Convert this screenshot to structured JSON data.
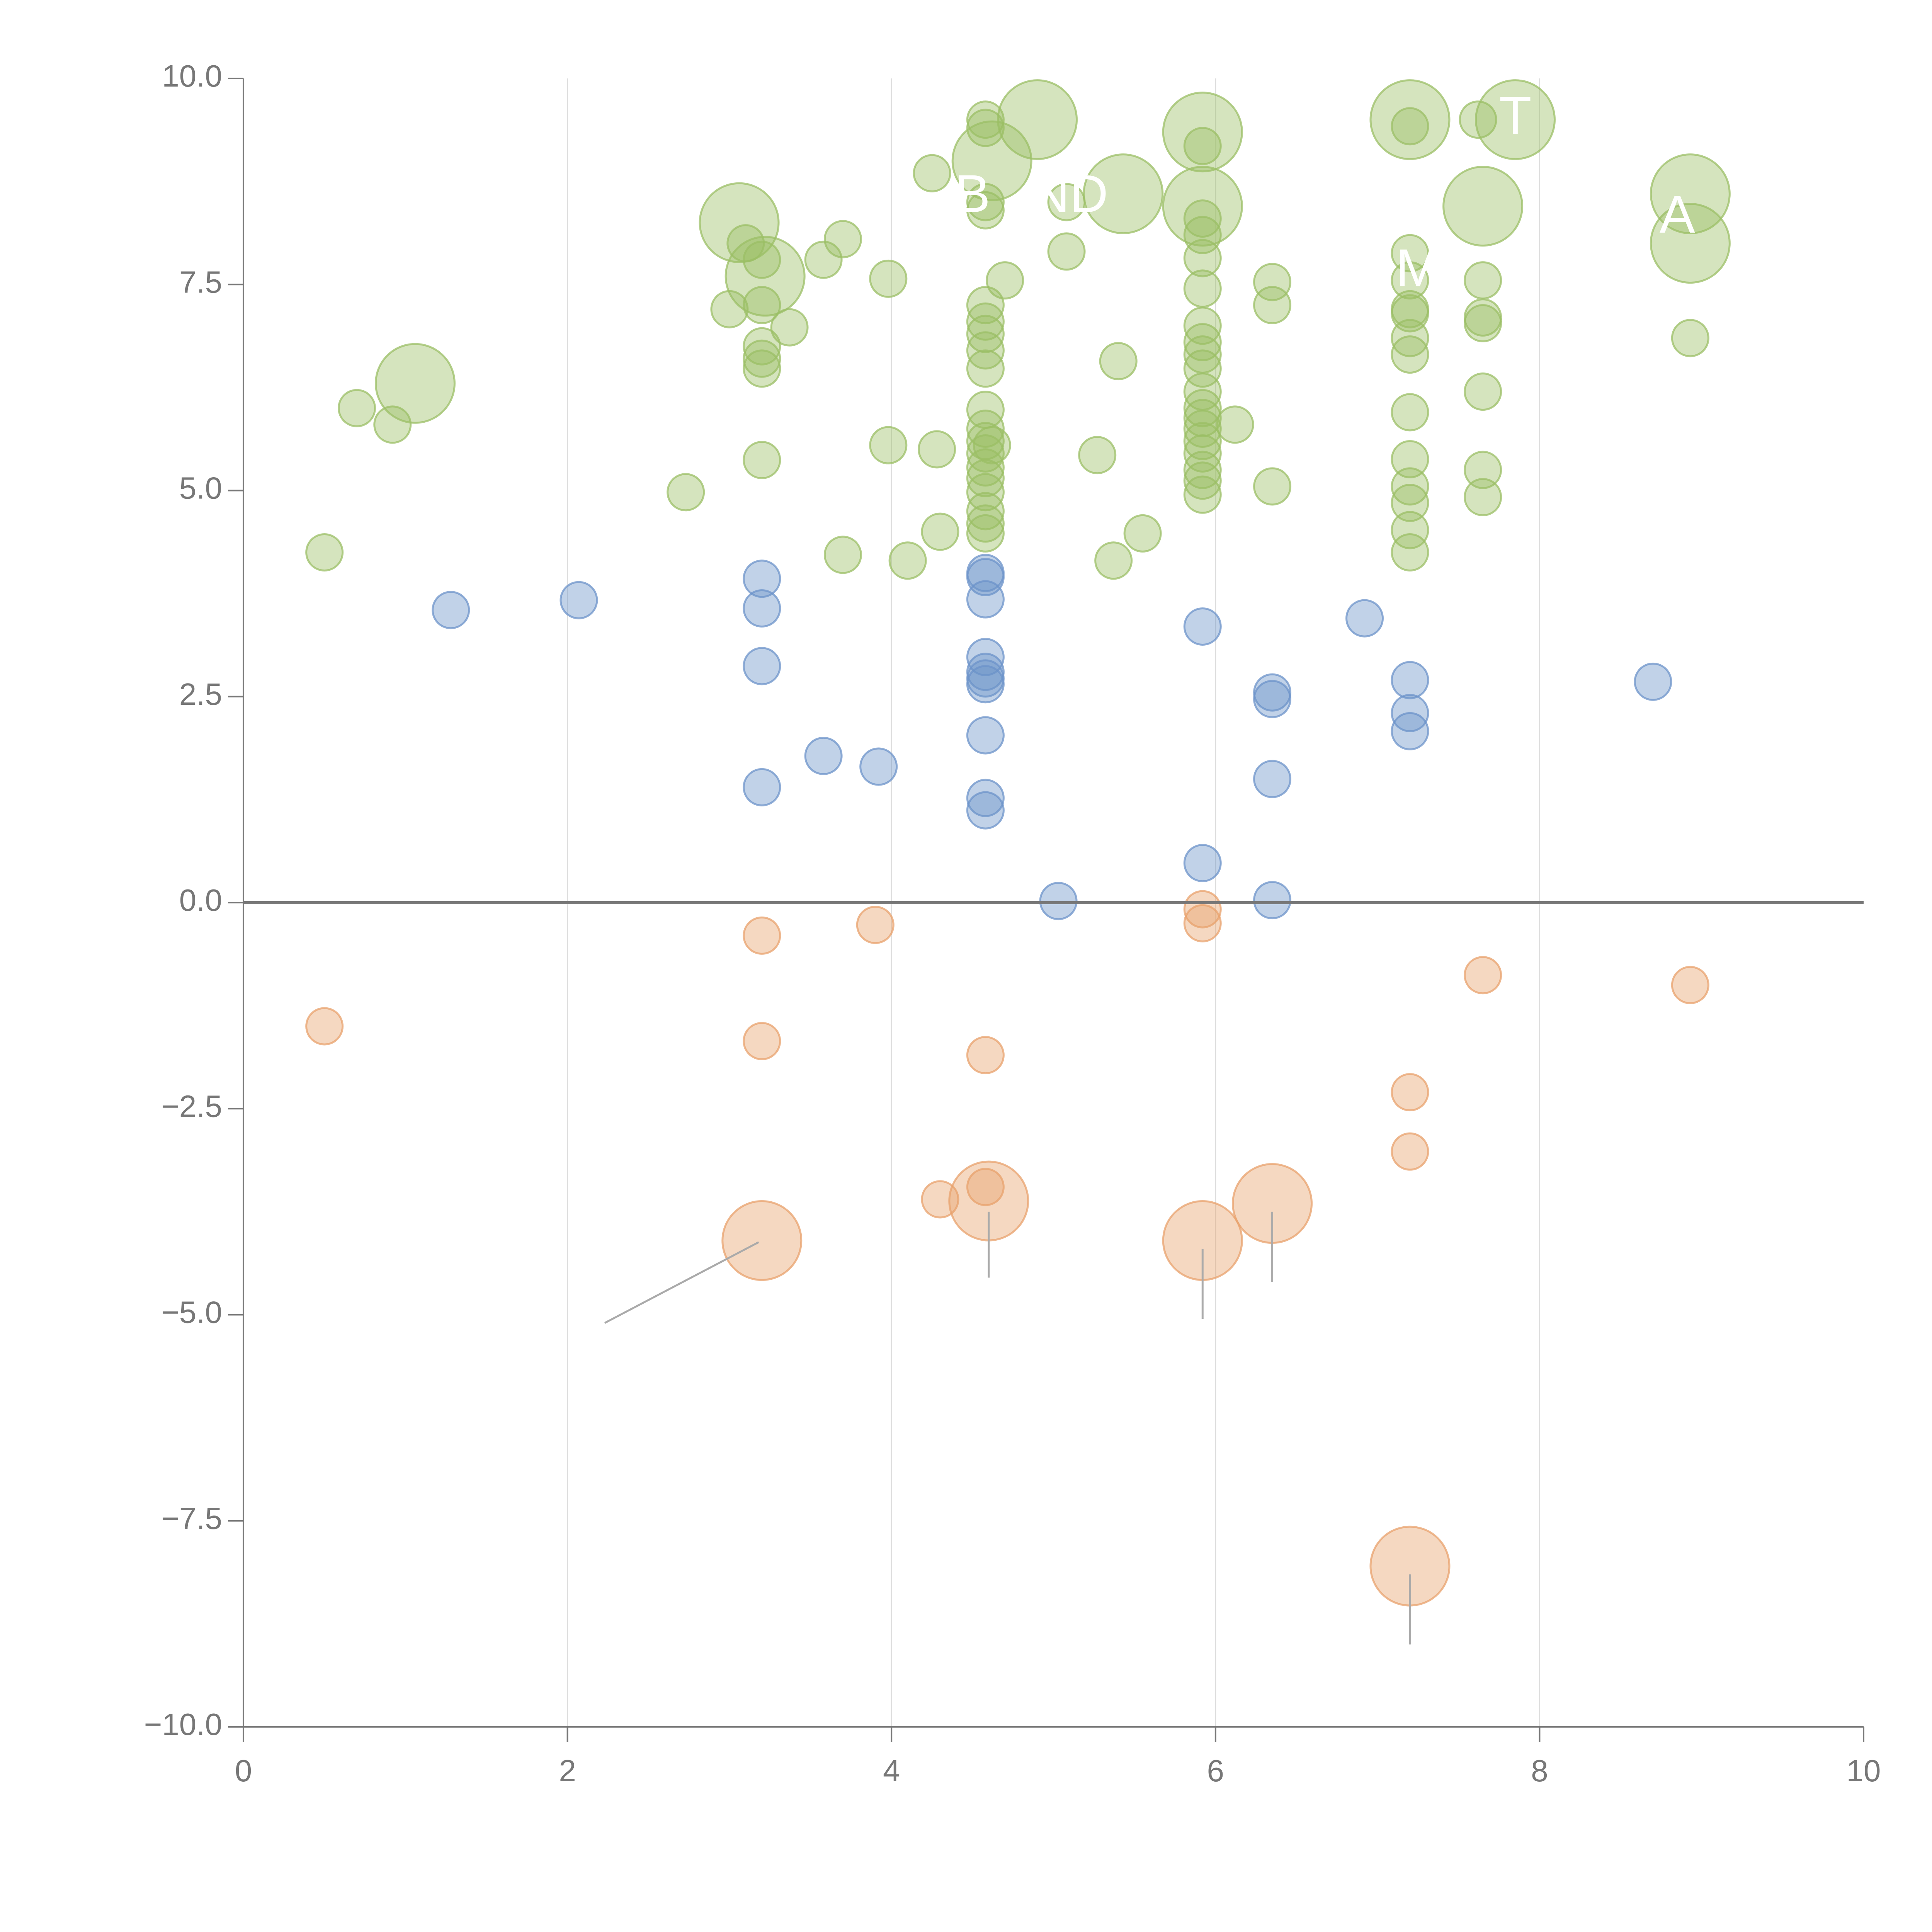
{
  "colors": {
    "positive_high": "#9bbf65",
    "positive_low": "#6c93c9",
    "negative": "#e8a26c",
    "axis": "#777777",
    "grid": "#dddddd",
    "label": "#ffffff",
    "leader": "#aaaaaa"
  },
  "chart_data": {
    "type": "scatter",
    "title": "",
    "xlabel": "",
    "ylabel": "",
    "xlim": [
      0,
      10
    ],
    "ylim": [
      -10,
      10
    ],
    "x_ticks": [
      0,
      2,
      4,
      6,
      8,
      10
    ],
    "x_tick_labels": [
      "0",
      "2",
      "4",
      "6",
      "8",
      "10"
    ],
    "y_ticks": [
      -10,
      -7.5,
      -5,
      -2.5,
      0,
      2.5,
      5,
      7.5,
      10
    ],
    "y_tick_labels": [
      "−10.0",
      "−7.5",
      "−5.0",
      "−2.5",
      "0.0",
      "2.5",
      "5.0",
      "7.5",
      "10.0"
    ],
    "vertical_gridlines_at": [
      2,
      4,
      6,
      8
    ],
    "zero_line": 0,
    "series": [
      {
        "name": "high",
        "color_key": "positive_high",
        "points": [
          {
            "x": 0.5,
            "y": 4.25,
            "s": 1
          },
          {
            "x": 0.7,
            "y": 6.0,
            "s": 1
          },
          {
            "x": 0.92,
            "y": 5.8,
            "s": 1
          },
          {
            "x": 1.06,
            "y": 6.3,
            "s": 3
          },
          {
            "x": 2.73,
            "y": 4.98,
            "s": 1
          },
          {
            "x": 3.0,
            "y": 7.2,
            "s": 1
          },
          {
            "x": 3.06,
            "y": 8.25,
            "s": 3
          },
          {
            "x": 3.1,
            "y": 8.0,
            "s": 1
          },
          {
            "x": 3.2,
            "y": 7.8,
            "s": 1
          },
          {
            "x": 3.2,
            "y": 7.25,
            "s": 1
          },
          {
            "x": 3.22,
            "y": 7.6,
            "s": 3
          },
          {
            "x": 3.2,
            "y": 6.75,
            "s": 1
          },
          {
            "x": 3.2,
            "y": 6.6,
            "s": 1
          },
          {
            "x": 3.2,
            "y": 6.48,
            "s": 1
          },
          {
            "x": 3.37,
            "y": 6.98,
            "s": 1
          },
          {
            "x": 3.2,
            "y": 5.37,
            "s": 1
          },
          {
            "x": 3.58,
            "y": 7.8,
            "s": 1
          },
          {
            "x": 3.7,
            "y": 8.05,
            "s": 1
          },
          {
            "x": 3.7,
            "y": 4.22,
            "s": 1
          },
          {
            "x": 3.98,
            "y": 7.57,
            "s": 1
          },
          {
            "x": 3.98,
            "y": 5.55,
            "s": 1
          },
          {
            "x": 4.1,
            "y": 4.15,
            "s": 1
          },
          {
            "x": 4.25,
            "y": 8.85,
            "s": 1
          },
          {
            "x": 4.28,
            "y": 5.5,
            "s": 1
          },
          {
            "x": 4.3,
            "y": 4.5,
            "s": 1
          },
          {
            "x": 4.58,
            "y": 9.5,
            "s": 1
          },
          {
            "x": 4.58,
            "y": 9.4,
            "s": 1
          },
          {
            "x": 4.58,
            "y": 8.5,
            "s": 1
          },
          {
            "x": 4.58,
            "y": 8.4,
            "s": 1
          },
          {
            "x": 4.58,
            "y": 7.25,
            "s": 1
          },
          {
            "x": 4.58,
            "y": 7.05,
            "s": 1
          },
          {
            "x": 4.58,
            "y": 6.9,
            "s": 1
          },
          {
            "x": 4.58,
            "y": 6.7,
            "s": 1
          },
          {
            "x": 4.58,
            "y": 6.48,
            "s": 1
          },
          {
            "x": 4.58,
            "y": 5.98,
            "s": 1
          },
          {
            "x": 4.58,
            "y": 5.75,
            "s": 1
          },
          {
            "x": 4.58,
            "y": 5.6,
            "s": 1
          },
          {
            "x": 4.58,
            "y": 5.45,
            "s": 1
          },
          {
            "x": 4.58,
            "y": 5.28,
            "s": 1
          },
          {
            "x": 4.58,
            "y": 5.15,
            "s": 1
          },
          {
            "x": 4.58,
            "y": 4.98,
            "s": 1
          },
          {
            "x": 4.58,
            "y": 4.75,
            "s": 1
          },
          {
            "x": 4.58,
            "y": 4.6,
            "s": 1
          },
          {
            "x": 4.58,
            "y": 4.48,
            "s": 1
          },
          {
            "x": 4.62,
            "y": 9.0,
            "s": 3
          },
          {
            "x": 4.62,
            "y": 5.55,
            "s": 1
          },
          {
            "x": 4.7,
            "y": 7.55,
            "s": 1
          },
          {
            "x": 4.9,
            "y": 9.5,
            "s": 3
          },
          {
            "x": 5.08,
            "y": 8.5,
            "s": 1
          },
          {
            "x": 5.08,
            "y": 7.9,
            "s": 1
          },
          {
            "x": 5.27,
            "y": 5.43,
            "s": 1
          },
          {
            "x": 5.37,
            "y": 4.15,
            "s": 1
          },
          {
            "x": 5.4,
            "y": 6.57,
            "s": 1
          },
          {
            "x": 5.43,
            "y": 8.6,
            "s": 3
          },
          {
            "x": 5.55,
            "y": 4.48,
            "s": 1
          },
          {
            "x": 5.92,
            "y": 9.35,
            "s": 3
          },
          {
            "x": 5.92,
            "y": 9.18,
            "s": 1
          },
          {
            "x": 5.92,
            "y": 8.45,
            "s": 3
          },
          {
            "x": 5.92,
            "y": 8.3,
            "s": 1
          },
          {
            "x": 5.92,
            "y": 8.1,
            "s": 1
          },
          {
            "x": 5.92,
            "y": 7.82,
            "s": 1
          },
          {
            "x": 5.92,
            "y": 7.45,
            "s": 1
          },
          {
            "x": 5.92,
            "y": 7.0,
            "s": 1
          },
          {
            "x": 5.92,
            "y": 6.8,
            "s": 1
          },
          {
            "x": 5.92,
            "y": 6.65,
            "s": 1
          },
          {
            "x": 5.92,
            "y": 6.48,
            "s": 1
          },
          {
            "x": 5.92,
            "y": 6.2,
            "s": 1
          },
          {
            "x": 5.92,
            "y": 6.0,
            "s": 1
          },
          {
            "x": 5.92,
            "y": 5.88,
            "s": 1
          },
          {
            "x": 5.92,
            "y": 5.75,
            "s": 1
          },
          {
            "x": 5.92,
            "y": 5.6,
            "s": 1
          },
          {
            "x": 5.92,
            "y": 5.45,
            "s": 1
          },
          {
            "x": 5.92,
            "y": 5.25,
            "s": 1
          },
          {
            "x": 5.92,
            "y": 5.12,
            "s": 1
          },
          {
            "x": 5.92,
            "y": 4.95,
            "s": 1
          },
          {
            "x": 6.12,
            "y": 5.8,
            "s": 1
          },
          {
            "x": 6.35,
            "y": 7.53,
            "s": 1
          },
          {
            "x": 6.35,
            "y": 7.25,
            "s": 1
          },
          {
            "x": 6.35,
            "y": 5.05,
            "s": 1
          },
          {
            "x": 7.2,
            "y": 9.5,
            "s": 3
          },
          {
            "x": 7.2,
            "y": 9.42,
            "s": 1
          },
          {
            "x": 7.2,
            "y": 7.88,
            "s": 1
          },
          {
            "x": 7.2,
            "y": 7.55,
            "s": 1
          },
          {
            "x": 7.2,
            "y": 7.2,
            "s": 1
          },
          {
            "x": 7.2,
            "y": 7.15,
            "s": 1
          },
          {
            "x": 7.2,
            "y": 6.85,
            "s": 1
          },
          {
            "x": 7.2,
            "y": 6.65,
            "s": 1
          },
          {
            "x": 7.2,
            "y": 5.95,
            "s": 1
          },
          {
            "x": 7.2,
            "y": 5.38,
            "s": 1
          },
          {
            "x": 7.2,
            "y": 5.05,
            "s": 1
          },
          {
            "x": 7.2,
            "y": 4.85,
            "s": 1
          },
          {
            "x": 7.2,
            "y": 4.52,
            "s": 1
          },
          {
            "x": 7.2,
            "y": 4.25,
            "s": 1
          },
          {
            "x": 7.62,
            "y": 9.5,
            "s": 1
          },
          {
            "x": 7.65,
            "y": 8.45,
            "s": 3
          },
          {
            "x": 7.65,
            "y": 7.55,
            "s": 1
          },
          {
            "x": 7.65,
            "y": 7.1,
            "s": 1
          },
          {
            "x": 7.65,
            "y": 7.03,
            "s": 1
          },
          {
            "x": 7.65,
            "y": 6.2,
            "s": 1
          },
          {
            "x": 7.65,
            "y": 5.25,
            "s": 1
          },
          {
            "x": 7.65,
            "y": 4.92,
            "s": 1
          },
          {
            "x": 7.85,
            "y": 9.5,
            "s": 3
          },
          {
            "x": 8.93,
            "y": 8.6,
            "s": 3
          },
          {
            "x": 8.93,
            "y": 8.0,
            "s": 3
          },
          {
            "x": 8.93,
            "y": 6.85,
            "s": 1
          }
        ]
      },
      {
        "name": "low",
        "color_key": "positive_low",
        "points": [
          {
            "x": 1.28,
            "y": 3.55,
            "s": 1
          },
          {
            "x": 2.07,
            "y": 3.67,
            "s": 1
          },
          {
            "x": 3.2,
            "y": 3.93,
            "s": 1
          },
          {
            "x": 3.2,
            "y": 3.57,
            "s": 1
          },
          {
            "x": 3.2,
            "y": 2.87,
            "s": 1
          },
          {
            "x": 3.2,
            "y": 1.4,
            "s": 1
          },
          {
            "x": 3.58,
            "y": 1.78,
            "s": 1
          },
          {
            "x": 3.92,
            "y": 1.65,
            "s": 1
          },
          {
            "x": 4.58,
            "y": 4.0,
            "s": 1
          },
          {
            "x": 4.58,
            "y": 3.95,
            "s": 1
          },
          {
            "x": 4.58,
            "y": 3.68,
            "s": 1
          },
          {
            "x": 4.58,
            "y": 2.98,
            "s": 1
          },
          {
            "x": 4.58,
            "y": 2.8,
            "s": 1
          },
          {
            "x": 4.58,
            "y": 2.72,
            "s": 1
          },
          {
            "x": 4.58,
            "y": 2.65,
            "s": 1
          },
          {
            "x": 4.58,
            "y": 2.03,
            "s": 1
          },
          {
            "x": 4.58,
            "y": 1.27,
            "s": 1
          },
          {
            "x": 4.58,
            "y": 1.12,
            "s": 1
          },
          {
            "x": 5.03,
            "y": 0.02,
            "s": 1
          },
          {
            "x": 5.92,
            "y": 3.35,
            "s": 1
          },
          {
            "x": 5.92,
            "y": 0.48,
            "s": 1
          },
          {
            "x": 6.35,
            "y": 2.55,
            "s": 1
          },
          {
            "x": 6.35,
            "y": 2.47,
            "s": 1
          },
          {
            "x": 6.35,
            "y": 1.5,
            "s": 1
          },
          {
            "x": 6.35,
            "y": 0.03,
            "s": 1
          },
          {
            "x": 6.92,
            "y": 3.45,
            "s": 1
          },
          {
            "x": 7.2,
            "y": 2.7,
            "s": 1
          },
          {
            "x": 7.2,
            "y": 2.3,
            "s": 1
          },
          {
            "x": 7.2,
            "y": 2.08,
            "s": 1
          },
          {
            "x": 8.7,
            "y": 2.68,
            "s": 1
          }
        ]
      },
      {
        "name": "negative",
        "color_key": "negative",
        "points": [
          {
            "x": 0.5,
            "y": -1.5,
            "s": 1
          },
          {
            "x": 3.2,
            "y": -0.4,
            "s": 1
          },
          {
            "x": 3.2,
            "y": -1.68,
            "s": 1
          },
          {
            "x": 3.2,
            "y": -4.1,
            "s": 3
          },
          {
            "x": 3.9,
            "y": -0.27,
            "s": 1
          },
          {
            "x": 4.3,
            "y": -3.6,
            "s": 1
          },
          {
            "x": 4.58,
            "y": -1.85,
            "s": 1
          },
          {
            "x": 4.58,
            "y": -3.45,
            "s": 1
          },
          {
            "x": 4.6,
            "y": -3.62,
            "s": 3
          },
          {
            "x": 5.92,
            "y": -0.08,
            "s": 1
          },
          {
            "x": 5.92,
            "y": -0.25,
            "s": 1
          },
          {
            "x": 5.92,
            "y": -4.1,
            "s": 3
          },
          {
            "x": 6.35,
            "y": -3.65,
            "s": 3
          },
          {
            "x": 7.2,
            "y": -2.3,
            "s": 1
          },
          {
            "x": 7.2,
            "y": -3.02,
            "s": 1
          },
          {
            "x": 7.2,
            "y": -8.05,
            "s": 3
          },
          {
            "x": 7.65,
            "y": -0.88,
            "s": 1
          },
          {
            "x": 8.93,
            "y": -1.0,
            "s": 1
          }
        ]
      }
    ],
    "annotations": [
      {
        "text": "T",
        "x": 7.85,
        "y": 9.5
      },
      {
        "text": "A",
        "x": 8.85,
        "y": 8.3
      },
      {
        "text": "B",
        "x": 4.5,
        "y": 8.55
      },
      {
        "text": "ND",
        "x": 5.1,
        "y": 8.55
      },
      {
        "text": "M",
        "x": 7.25,
        "y": 7.65
      }
    ],
    "leader_lines": [
      {
        "from": [
          2.23,
          -5.1
        ],
        "to": [
          3.18,
          -4.12
        ]
      },
      {
        "from": [
          4.6,
          -4.55
        ],
        "to": [
          4.6,
          -3.75
        ]
      },
      {
        "from": [
          5.92,
          -5.05
        ],
        "to": [
          5.92,
          -4.2
        ]
      },
      {
        "from": [
          6.35,
          -4.6
        ],
        "to": [
          6.35,
          -3.75
        ]
      },
      {
        "from": [
          7.2,
          -9.0
        ],
        "to": [
          7.2,
          -8.15
        ]
      }
    ]
  }
}
